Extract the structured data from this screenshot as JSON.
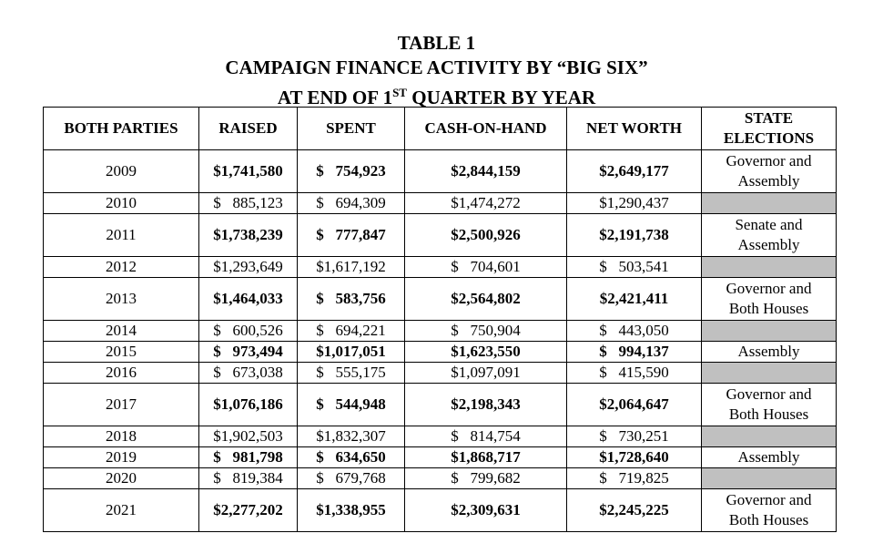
{
  "title": {
    "line1": "TABLE 1",
    "line2": "CAMPAIGN FINANCE ACTIVITY BY “BIG SIX”",
    "line3a": "AT END OF 1",
    "line3sup": "ST",
    "line3b": " QUARTER BY YEAR"
  },
  "headers": [
    "BOTH PARTIES",
    "RAISED",
    "SPENT",
    "CASH-ON-HAND",
    "NET WORTH",
    "STATE\nELECTIONS"
  ],
  "rows": [
    {
      "year": "2009",
      "raised": "$1,741,580",
      "spent": "$   754,923",
      "cash": "$2,844,159",
      "net": "$2,649,177",
      "state": "Governor and\nAssembly"
    },
    {
      "year": "2010",
      "raised": "$   885,123",
      "spent": "$   694,309",
      "cash": "$1,474,272",
      "net": "$1,290,437",
      "state": ""
    },
    {
      "year": "2011",
      "raised": "$1,738,239",
      "spent": "$   777,847",
      "cash": "$2,500,926",
      "net": "$2,191,738",
      "state": "Senate and\nAssembly"
    },
    {
      "year": "2012",
      "raised": "$1,293,649",
      "spent": "$1,617,192",
      "cash": "$   704,601",
      "net": "$   503,541",
      "state": ""
    },
    {
      "year": "2013",
      "raised": "$1,464,033",
      "spent": "$   583,756",
      "cash": "$2,564,802",
      "net": "$2,421,411",
      "state": "Governor and\nBoth Houses"
    },
    {
      "year": "2014",
      "raised": "$   600,526",
      "spent": "$   694,221",
      "cash": "$   750,904",
      "net": "$   443,050",
      "state": ""
    },
    {
      "year": "2015",
      "raised": "$   973,494",
      "spent": "$1,017,051",
      "cash": "$1,623,550",
      "net": "$   994,137",
      "state": "Assembly"
    },
    {
      "year": "2016",
      "raised": "$   673,038",
      "spent": "$   555,175",
      "cash": "$1,097,091",
      "net": "$   415,590",
      "state": ""
    },
    {
      "year": "2017",
      "raised": "$1,076,186",
      "spent": "$   544,948",
      "cash": "$2,198,343",
      "net": "$2,064,647",
      "state": "Governor and\nBoth Houses"
    },
    {
      "year": "2018",
      "raised": "$1,902,503",
      "spent": "$1,832,307",
      "cash": "$   814,754",
      "net": "$   730,251",
      "state": ""
    },
    {
      "year": "2019",
      "raised": "$   981,798",
      "spent": "$   634,650",
      "cash": "$1,868,717",
      "net": "$1,728,640",
      "state": "Assembly"
    },
    {
      "year": "2020",
      "raised": "$   819,384",
      "spent": "$   679,768",
      "cash": "$   799,682",
      "net": "$   719,825",
      "state": ""
    },
    {
      "year": "2021",
      "raised": "$2,277,202",
      "spent": "$1,338,955",
      "cash": "$2,309,631",
      "net": "$2,245,225",
      "state": "Governor and\nBoth Houses"
    }
  ],
  "colors": {
    "shade": "#c0c0c0"
  }
}
